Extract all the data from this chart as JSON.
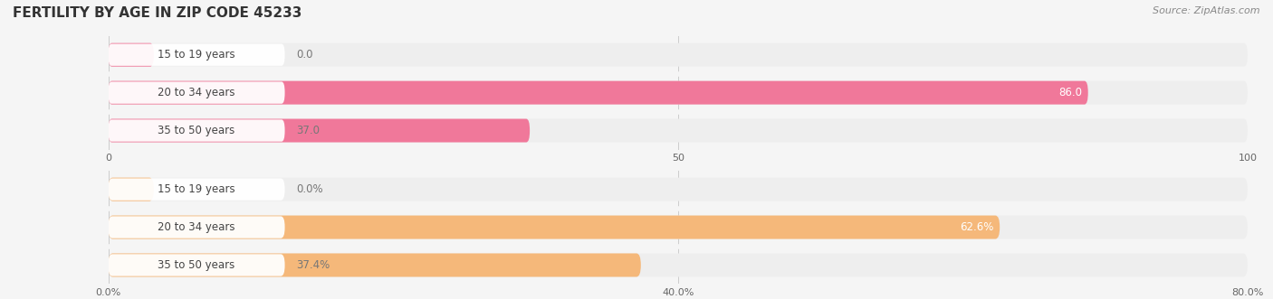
{
  "title": "FERTILITY BY AGE IN ZIP CODE 45233",
  "source": "Source: ZipAtlas.com",
  "top_chart": {
    "categories": [
      "15 to 19 years",
      "20 to 34 years",
      "35 to 50 years"
    ],
    "values": [
      0.0,
      86.0,
      37.0
    ],
    "xlim": [
      0,
      100
    ],
    "xticks": [
      0.0,
      50.0,
      100.0
    ],
    "bar_color": "#f0789a",
    "bar_bg_color": "#eeeeee",
    "label_inside_color": "#ffffff",
    "label_outside_color": "#777777",
    "value_threshold": 50
  },
  "bottom_chart": {
    "categories": [
      "15 to 19 years",
      "20 to 34 years",
      "35 to 50 years"
    ],
    "values": [
      0.0,
      62.6,
      37.4
    ],
    "xlim": [
      0,
      80
    ],
    "xticks": [
      0.0,
      40.0,
      80.0
    ],
    "xtick_labels": [
      "0.0%",
      "40.0%",
      "80.0%"
    ],
    "bar_color": "#f5b87a",
    "bar_bg_color": "#eeeeee",
    "label_inside_color": "#ffffff",
    "label_outside_color": "#777777",
    "value_threshold": 45
  },
  "bg_color": "#f5f5f5",
  "bar_height": 0.62,
  "category_label_fontsize": 8.5,
  "value_label_fontsize": 8.5,
  "title_fontsize": 11,
  "tick_fontsize": 8,
  "source_fontsize": 8
}
